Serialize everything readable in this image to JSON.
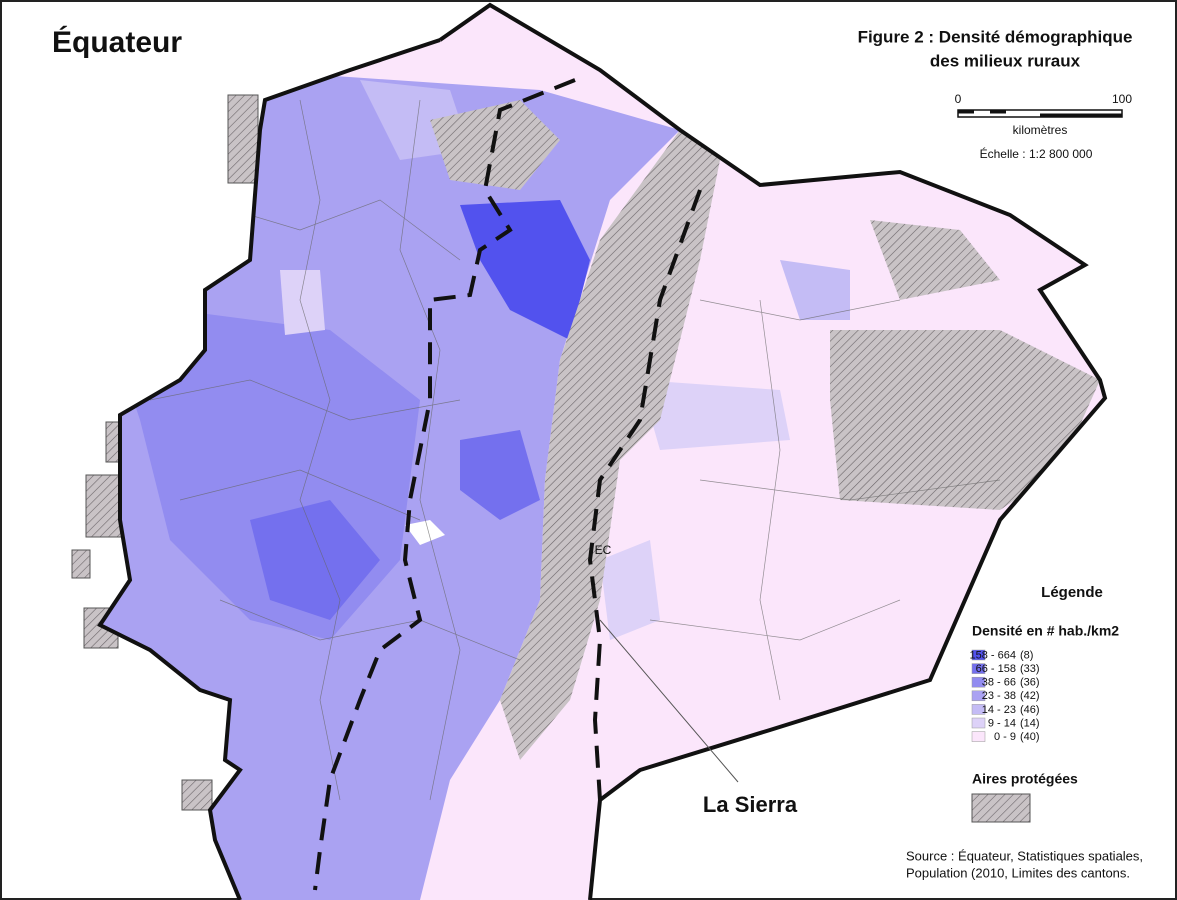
{
  "title": "Équateur",
  "figure_title": [
    "Figure 2 : Densité démographique",
    "des milieux ruraux"
  ],
  "scale": {
    "start": "0",
    "end": "100",
    "unit": "kilomètres",
    "ratio": "Échelle : 1:2 800 000"
  },
  "map_labels": {
    "station": "EC",
    "region": "La Sierra"
  },
  "legend": {
    "title": "Légende",
    "density_title": "Densité en # hab./km2",
    "classes": [
      {
        "range": "158 - 664",
        "count": "(8)",
        "color": "#5252ee"
      },
      {
        "range": "66 - 158",
        "count": "(33)",
        "color": "#7470ee"
      },
      {
        "range": "38 - 66",
        "count": "(36)",
        "color": "#928cf0"
      },
      {
        "range": "23 - 38",
        "count": "(42)",
        "color": "#aaa2f2"
      },
      {
        "range": "14 - 23",
        "count": "(46)",
        "color": "#c4bcf5"
      },
      {
        "range": "9 - 14",
        "count": "(14)",
        "color": "#ddd2f8"
      },
      {
        "range": "0 - 9",
        "count": "(40)",
        "color": "#fbe6fb"
      }
    ],
    "protected_title": "Aires protégées"
  },
  "source": [
    "Source : Équateur, Statistiques spatiales,",
    "Population (2010, Limites des cantons."
  ]
}
